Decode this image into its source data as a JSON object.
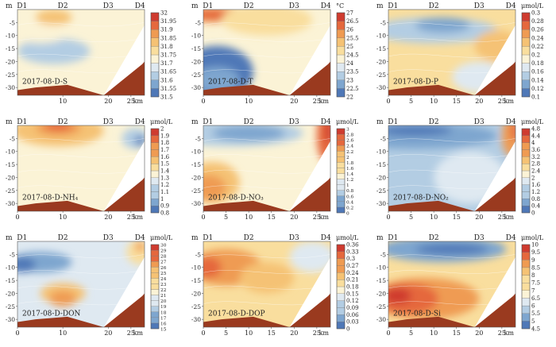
{
  "station_labels": [
    "D1",
    "D2",
    "D3",
    "D4"
  ],
  "y_axis_unit": "m",
  "x_axis_unit": "km",
  "x_ticks": [
    0,
    5,
    10,
    15,
    20,
    25
  ],
  "depth_ticks": [
    -5,
    -10,
    -15,
    -20,
    -25,
    -30
  ],
  "seafloor_color": "#9a3a1f",
  "panels": [
    {
      "label": "2017-08-D-S",
      "unit": "",
      "colorbar": [
        "31.5",
        "31.55",
        "31.6",
        "31.65",
        "31.7",
        "31.75",
        "31.8",
        "31.85",
        "31.9",
        "31.95",
        "32"
      ],
      "x_tick_labels": [
        "10",
        "20",
        "25"
      ],
      "station_positions_km": [
        0,
        10,
        20,
        27
      ]
    },
    {
      "label": "2017-08-D-T",
      "unit": "°C",
      "colorbar": [
        "22",
        "22.5",
        "23",
        "23.5",
        "24",
        "24.5",
        "25",
        "25.5",
        "26",
        "26.5",
        "27"
      ],
      "x_tick_labels": [
        "0",
        "10",
        "20",
        "25"
      ],
      "station_positions_km": [
        0,
        10,
        20,
        27
      ]
    },
    {
      "label": "2017-08-D-P",
      "unit": "μmol/L",
      "colorbar": [
        "0.1",
        "0.12",
        "0.14",
        "0.16",
        "0.18",
        "0.2",
        "0.22",
        "0.24",
        "0.26",
        "0.28",
        "0.3"
      ],
      "x_tick_labels": [
        "0",
        "5",
        "10",
        "15",
        "20",
        "25"
      ],
      "station_positions_km": [
        0,
        10,
        20,
        27
      ]
    },
    {
      "label": "2017-08-D-NH₄",
      "unit": "μmol/L",
      "colorbar": [
        "0.8",
        "0.9",
        "1",
        "1.1",
        "1.2",
        "1.3",
        "1.4",
        "1.5",
        "1.6",
        "1.7",
        "1.8",
        "1.9",
        "2"
      ],
      "x_tick_labels": [
        "0",
        "10",
        "20",
        "25"
      ],
      "station_positions_km": [
        0,
        10,
        20,
        27
      ]
    },
    {
      "label": "2017-08-D-NO₃",
      "unit": "μmol/L",
      "colorbar": [
        "0",
        "0.2",
        "0.4",
        "0.6",
        "0.8",
        "1",
        "1.2",
        "1.4",
        "1.6",
        "1.8",
        "2",
        "2.2",
        "2.4",
        "2.6",
        "2.8",
        "3"
      ],
      "x_tick_labels": [
        "0",
        "5",
        "10",
        "15",
        "20",
        "25"
      ],
      "station_positions_km": [
        0,
        10,
        20,
        27
      ]
    },
    {
      "label": "2017-08-D-NO₂",
      "unit": "μmol/L",
      "colorbar": [
        "0",
        "0.4",
        "0.8",
        "1.2",
        "1.6",
        "2",
        "2.4",
        "2.8",
        "3.2",
        "3.6",
        "4",
        "4.4",
        "4.8"
      ],
      "x_tick_labels": [
        "0",
        "5",
        "10",
        "15",
        "20",
        "25"
      ],
      "station_positions_km": [
        0,
        10,
        20,
        27
      ]
    },
    {
      "label": "2017-08-D-DON",
      "unit": "μmol/L",
      "colorbar": [
        "15",
        "16",
        "17",
        "18",
        "19",
        "20",
        "21",
        "22",
        "23",
        "24",
        "25",
        "26",
        "27",
        "28",
        "29",
        "30"
      ],
      "x_tick_labels": [
        "0",
        "10",
        "20",
        "25"
      ],
      "station_positions_km": [
        0,
        10,
        20,
        27
      ]
    },
    {
      "label": "2017-08-D-DOP",
      "unit": "μmol/L",
      "colorbar": [
        "0",
        "0.03",
        "0.06",
        "0.09",
        "0.12",
        "0.15",
        "0.18",
        "0.21",
        "0.24",
        "0.27",
        "0.3",
        "0.33",
        "0.36"
      ],
      "x_tick_labels": [
        "0",
        "5",
        "10",
        "15",
        "20",
        "25"
      ],
      "station_positions_km": [
        0,
        10,
        20,
        27
      ]
    },
    {
      "label": "2017-08-D-Si",
      "unit": "μmol/L",
      "colorbar": [
        "4.5",
        "5",
        "5.5",
        "6",
        "6.5",
        "7",
        "7.5",
        "8",
        "8.5",
        "9",
        "9.5",
        "10"
      ],
      "x_tick_labels": [
        "0",
        "5",
        "10",
        "15",
        "20",
        "25"
      ],
      "station_positions_km": [
        0,
        10,
        20,
        27
      ]
    }
  ],
  "palette": [
    "#4f78b7",
    "#7ea6cf",
    "#b3cde3",
    "#dfe9f1",
    "#fbf3d6",
    "#f9de9e",
    "#f5c274",
    "#ef9b52",
    "#e5683d",
    "#cf3b2f"
  ]
}
